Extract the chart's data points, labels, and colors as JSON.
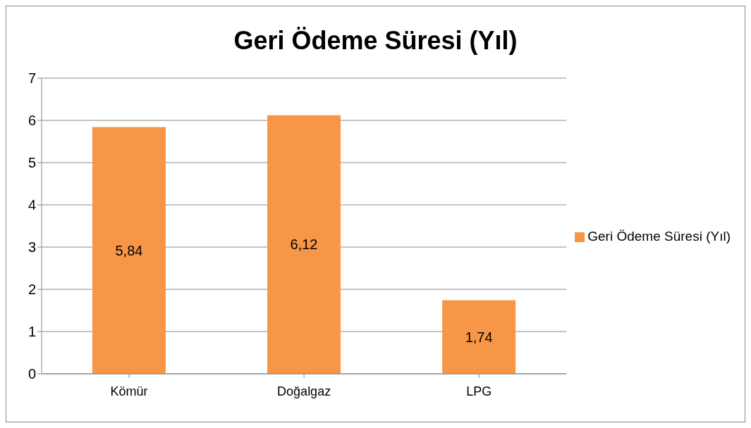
{
  "chart_data": {
    "type": "bar",
    "title": "Geri Ödeme Süresi (Yıl)",
    "categories": [
      "Kömür",
      "Doğalgaz",
      "LPG"
    ],
    "series": [
      {
        "name": "Geri Ödeme Süresi (Yıl)",
        "color": "#f79646",
        "values": [
          5.84,
          6.12,
          1.74
        ],
        "value_labels": [
          "5,84",
          "6,12",
          "1,74"
        ]
      }
    ],
    "ylim": [
      0,
      7
    ],
    "yticks": [
      0,
      1,
      2,
      3,
      4,
      5,
      6,
      7
    ],
    "grid": "y",
    "legend": "right"
  }
}
